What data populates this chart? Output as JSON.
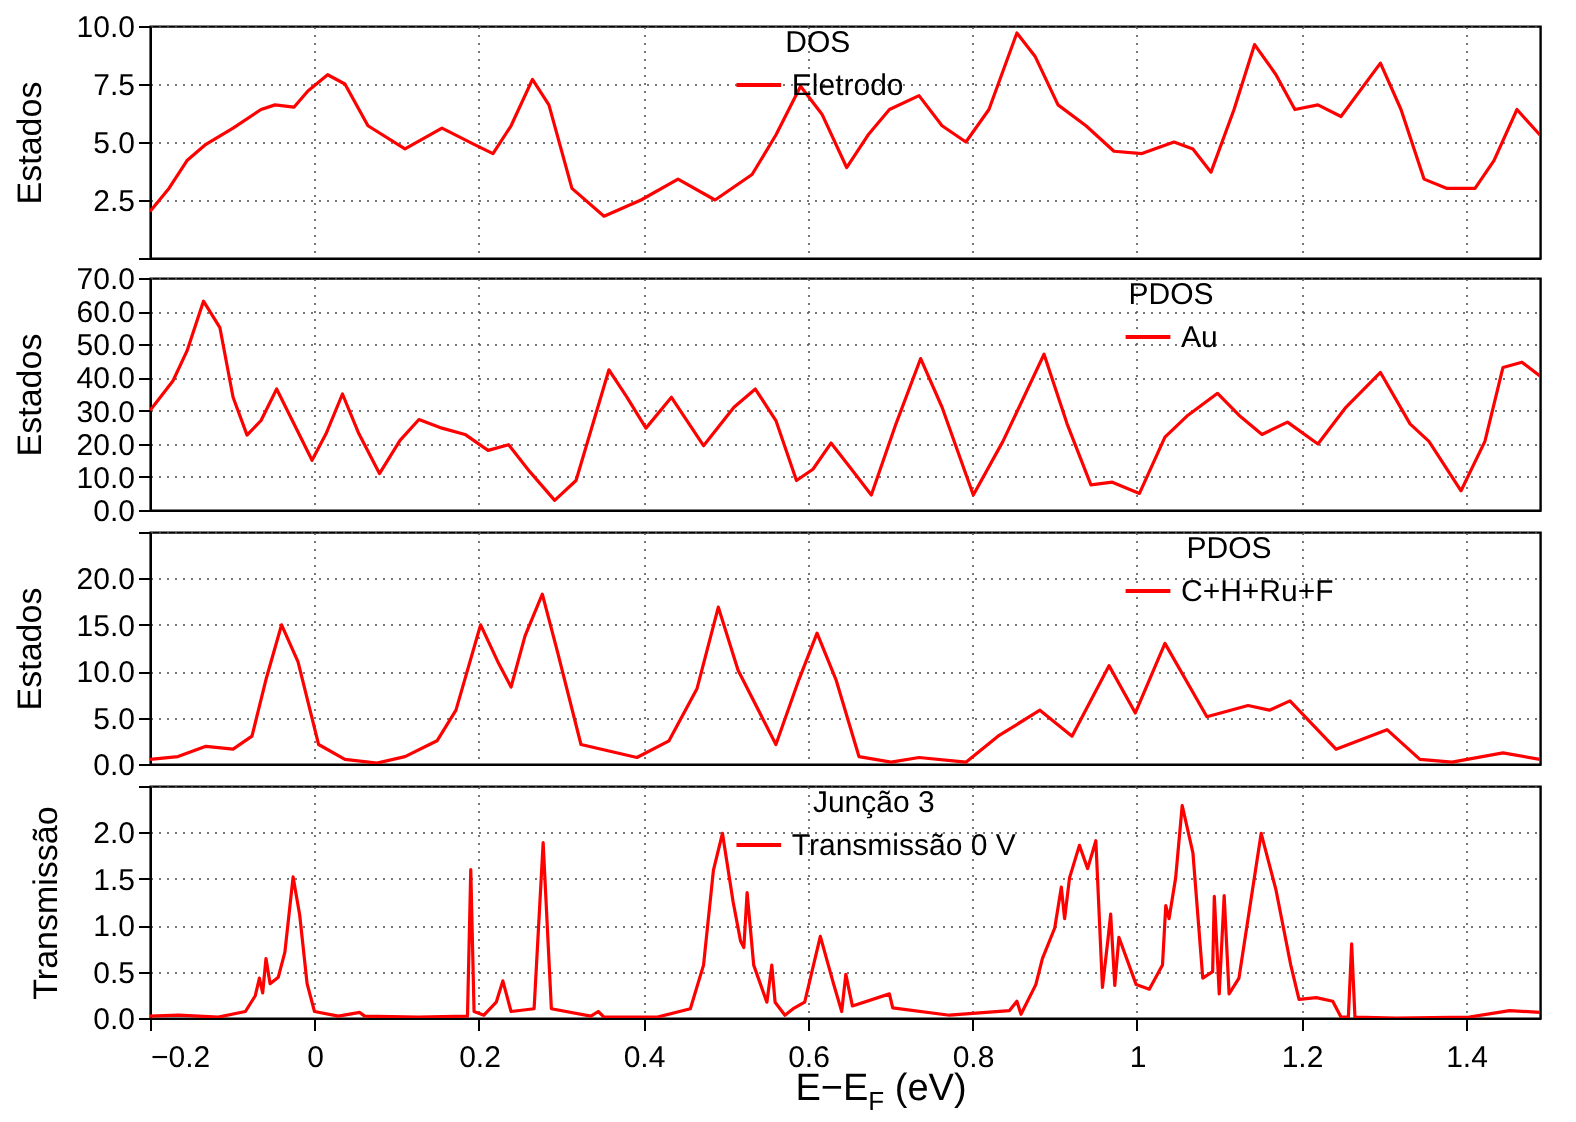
{
  "chart_data": [
    {
      "type": "line",
      "ylabel": "Estados",
      "legend_title": "DOS",
      "legend": "top",
      "grid": true,
      "tick_labels": "y",
      "xlim": [
        -0.2,
        1.49
      ],
      "ylim": [
        0,
        10
      ],
      "xticks": [
        0,
        0.2,
        0.4,
        0.6,
        0.8,
        1,
        1.2,
        1.4
      ],
      "yticks": [
        {
          "value": 0,
          "label": null
        },
        2.5,
        {
          "value": 5,
          "label": "5.0"
        },
        7.5,
        {
          "value": 10,
          "label": "10.0"
        }
      ],
      "series": [
        {
          "name": "Eletrodo",
          "color": "#ff0000",
          "x": [
            -0.2,
            -0.177,
            -0.155,
            -0.132,
            -0.099,
            -0.065,
            -0.048,
            -0.025,
            -0.008,
            0.016,
            0.037,
            0.065,
            0.11,
            0.155,
            0.194,
            0.217,
            0.239,
            0.265,
            0.285,
            0.313,
            0.352,
            0.397,
            0.442,
            0.487,
            0.532,
            0.561,
            0.591,
            0.617,
            0.647,
            0.673,
            0.699,
            0.735,
            0.763,
            0.792,
            0.82,
            0.854,
            0.876,
            0.904,
            0.938,
            0.972,
            1.006,
            1.045,
            1.068,
            1.09,
            1.118,
            1.143,
            1.169,
            1.192,
            1.22,
            1.248,
            1.296,
            1.321,
            1.349,
            1.377,
            1.411,
            1.434,
            1.462,
            1.49
          ],
          "values": [
            2.0,
            3.0,
            4.2,
            4.9,
            5.6,
            6.4,
            6.6,
            6.5,
            7.2,
            7.9,
            7.5,
            5.7,
            4.7,
            5.6,
            4.9,
            4.5,
            5.7,
            7.7,
            6.6,
            3.0,
            1.8,
            2.5,
            3.4,
            2.5,
            3.6,
            5.3,
            7.4,
            6.2,
            3.9,
            5.3,
            6.4,
            7.0,
            5.7,
            5.0,
            6.4,
            9.7,
            8.7,
            6.6,
            5.7,
            4.6,
            4.5,
            5.0,
            4.7,
            3.7,
            6.4,
            9.2,
            7.9,
            6.4,
            6.6,
            6.1,
            8.4,
            6.4,
            3.4,
            3.0,
            3.0,
            4.2,
            6.4,
            5.3
          ]
        }
      ]
    },
    {
      "type": "line",
      "ylabel": "Estados",
      "legend_title": "PDOS",
      "legend": "top right",
      "grid": true,
      "tick_labels": "y",
      "xlim": [
        -0.2,
        1.49
      ],
      "ylim": [
        0,
        70
      ],
      "xticks": [
        0,
        0.2,
        0.4,
        0.6,
        0.8,
        1,
        1.2,
        1.4
      ],
      "yticks": [
        {
          "value": 0,
          "label": "0.0"
        },
        {
          "value": 10,
          "label": "10.0"
        },
        {
          "value": 20,
          "label": "20.0"
        },
        {
          "value": 30,
          "label": "30.0"
        },
        {
          "value": 40,
          "label": "40.0"
        },
        {
          "value": 50,
          "label": "50.0"
        },
        {
          "value": 60,
          "label": "60.0"
        },
        {
          "value": 70,
          "label": "70.0"
        }
      ],
      "series": [
        {
          "name": "Au",
          "color": "#ff0000",
          "x": [
            -0.2,
            -0.172,
            -0.155,
            -0.135,
            -0.115,
            -0.099,
            -0.082,
            -0.065,
            -0.046,
            -0.025,
            -0.003,
            0.014,
            0.034,
            0.054,
            0.079,
            0.104,
            0.127,
            0.155,
            0.183,
            0.211,
            0.236,
            0.262,
            0.292,
            0.318,
            0.358,
            0.38,
            0.403,
            0.434,
            0.473,
            0.51,
            0.536,
            0.561,
            0.586,
            0.606,
            0.628,
            0.651,
            0.677,
            0.707,
            0.737,
            0.763,
            0.801,
            0.837,
            0.887,
            0.915,
            0.944,
            0.97,
            1.003,
            1.034,
            1.062,
            1.098,
            1.124,
            1.152,
            1.183,
            1.22,
            1.254,
            1.296,
            1.332,
            1.355,
            1.394,
            1.423,
            1.445,
            1.468,
            1.49
          ],
          "values": [
            30,
            39,
            48,
            63,
            55,
            34,
            22.6,
            27,
            36.5,
            26,
            15,
            23,
            35,
            23,
            11,
            21,
            27.3,
            24.7,
            22.8,
            18,
            19.7,
            11.5,
            2.9,
            8.9,
            42.3,
            34,
            24.7,
            34,
            19.4,
            31,
            36.5,
            27,
            8.9,
            12.3,
            20.2,
            12.9,
            4.5,
            26,
            45.7,
            31,
            4.5,
            20.7,
            47,
            26,
            7.6,
            8.4,
            5,
            22,
            28.6,
            35.2,
            28.6,
            22.8,
            26.5,
            19.9,
            31,
            41.5,
            26,
            20.7,
            5.8,
            20.7,
            43,
            44.6,
            40.4
          ]
        }
      ]
    },
    {
      "type": "line",
      "ylabel": "Estados",
      "legend_title": "PDOS",
      "legend": "top right",
      "grid": true,
      "tick_labels": "y",
      "xlim": [
        -0.2,
        1.49
      ],
      "ylim": [
        0,
        25
      ],
      "xticks": [
        0,
        0.2,
        0.4,
        0.6,
        0.8,
        1,
        1.2,
        1.4
      ],
      "yticks": [
        {
          "value": 0,
          "label": "0.0"
        },
        {
          "value": 5,
          "label": "5.0"
        },
        {
          "value": 10,
          "label": "10.0"
        },
        {
          "value": 15,
          "label": "15.0"
        },
        {
          "value": 20,
          "label": "20.0"
        },
        {
          "value": 25,
          "label": null
        }
      ],
      "series": [
        {
          "name": "C+H+Ru+F",
          "color": "#ff0000",
          "x": [
            -0.2,
            -0.166,
            -0.132,
            -0.099,
            -0.076,
            -0.059,
            -0.04,
            -0.02,
            0.005,
            0.037,
            0.076,
            0.11,
            0.149,
            0.172,
            0.202,
            0.223,
            0.239,
            0.256,
            0.277,
            0.296,
            0.324,
            0.358,
            0.392,
            0.431,
            0.465,
            0.491,
            0.515,
            0.561,
            0.589,
            0.611,
            0.634,
            0.662,
            0.701,
            0.735,
            0.792,
            0.831,
            0.882,
            0.921,
            0.966,
            0.998,
            1.034,
            1.085,
            1.135,
            1.161,
            1.186,
            1.242,
            1.304,
            1.344,
            1.383,
            1.445,
            1.49
          ],
          "values": [
            0.5,
            0.8,
            1.9,
            1.6,
            3.0,
            9.1,
            15,
            11,
            2.1,
            0.5,
            0.1,
            0.8,
            2.5,
            5.8,
            15,
            11,
            8.3,
            13.8,
            18.3,
            11.9,
            2.1,
            1.4,
            0.7,
            2.5,
            8.1,
            16.9,
            10.1,
            2.1,
            9.1,
            14.1,
            9.1,
            0.8,
            0.2,
            0.7,
            0.2,
            3.0,
            5.8,
            3.0,
            10.6,
            5.5,
            13,
            5.1,
            6.3,
            5.8,
            6.8,
            1.6,
            3.7,
            0.5,
            0.2,
            1.2,
            0.5
          ]
        }
      ]
    },
    {
      "type": "line",
      "xlabel": "E−E$_{F}$ (eV)",
      "ylabel": "Transmissão",
      "legend_title": "Junção 3",
      "legend": "top",
      "grid": true,
      "xlim": [
        -0.2,
        1.49
      ],
      "ylim": [
        0,
        2.5
      ],
      "xticks": [
        {
          "value": -0.2,
          "label": "−0.2"
        },
        0,
        0.2,
        0.4,
        0.6,
        0.8,
        1,
        1.2,
        1.4
      ],
      "yticks": [
        {
          "value": 0,
          "label": "0.0"
        },
        0.5,
        {
          "value": 1,
          "label": "1.0"
        },
        1.5,
        {
          "value": 2,
          "label": "2.0"
        },
        {
          "value": 2.5,
          "label": null
        }
      ],
      "series": [
        {
          "name": "Transmissão 0 V",
          "color": "#ff0000",
          "x": [
            -0.2,
            -0.165,
            -0.117,
            -0.084,
            -0.072,
            -0.067,
            -0.063,
            -0.059,
            -0.054,
            -0.044,
            -0.036,
            -0.026,
            -0.018,
            -0.009,
            0.0,
            0.029,
            0.055,
            0.061,
            0.126,
            0.186,
            0.19,
            0.194,
            0.206,
            0.221,
            0.229,
            0.239,
            0.267,
            0.278,
            0.288,
            0.336,
            0.345,
            0.352,
            0.417,
            0.457,
            0.473,
            0.485,
            0.496,
            0.509,
            0.518,
            0.522,
            0.526,
            0.534,
            0.55,
            0.556,
            0.56,
            0.572,
            0.582,
            0.596,
            0.615,
            0.631,
            0.641,
            0.646,
            0.654,
            0.699,
            0.703,
            0.772,
            0.845,
            0.854,
            0.859,
            0.877,
            0.885,
            0.9,
            0.908,
            0.912,
            0.918,
            0.93,
            0.94,
            0.95,
            0.958,
            0.965,
            0.968,
            0.973,
            0.978,
            0.999,
            1.015,
            1.031,
            1.035,
            1.039,
            1.047,
            1.055,
            1.068,
            1.08,
            1.092,
            1.094,
            1.1,
            1.106,
            1.112,
            1.124,
            1.151,
            1.169,
            1.187,
            1.197,
            1.218,
            1.238,
            1.248,
            1.257,
            1.261,
            1.265,
            1.315,
            1.404,
            1.453,
            1.49
          ],
          "values": [
            0.02,
            0.03,
            0.01,
            0.07,
            0.24,
            0.43,
            0.27,
            0.64,
            0.37,
            0.44,
            0.71,
            1.52,
            1.11,
            0.37,
            0.07,
            0.02,
            0.06,
            0.02,
            0.01,
            0.02,
            1.6,
            0.07,
            0.03,
            0.17,
            0.4,
            0.07,
            0.1,
            1.89,
            0.1,
            0.02,
            0.07,
            0.01,
            0.01,
            0.1,
            0.57,
            1.59,
            1.99,
            1.25,
            0.83,
            0.76,
            1.35,
            0.57,
            0.17,
            0.57,
            0.17,
            0.03,
            0.1,
            0.17,
            0.88,
            0.37,
            0.07,
            0.47,
            0.13,
            0.26,
            0.11,
            0.03,
            0.08,
            0.18,
            0.04,
            0.36,
            0.64,
            0.97,
            1.41,
            1.07,
            1.51,
            1.86,
            1.61,
            1.91,
            0.33,
            0.87,
            1.12,
            0.35,
            0.87,
            0.36,
            0.31,
            0.57,
            1.21,
            1.07,
            1.51,
            2.29,
            1.78,
            0.43,
            0.5,
            1.31,
            0.26,
            1.32,
            0.26,
            0.43,
            1.99,
            1.38,
            0.57,
            0.2,
            0.22,
            0.18,
            0.01,
            0.01,
            0.8,
            0.01,
            0.0,
            0.01,
            0.08,
            0.06
          ]
        }
      ]
    }
  ]
}
